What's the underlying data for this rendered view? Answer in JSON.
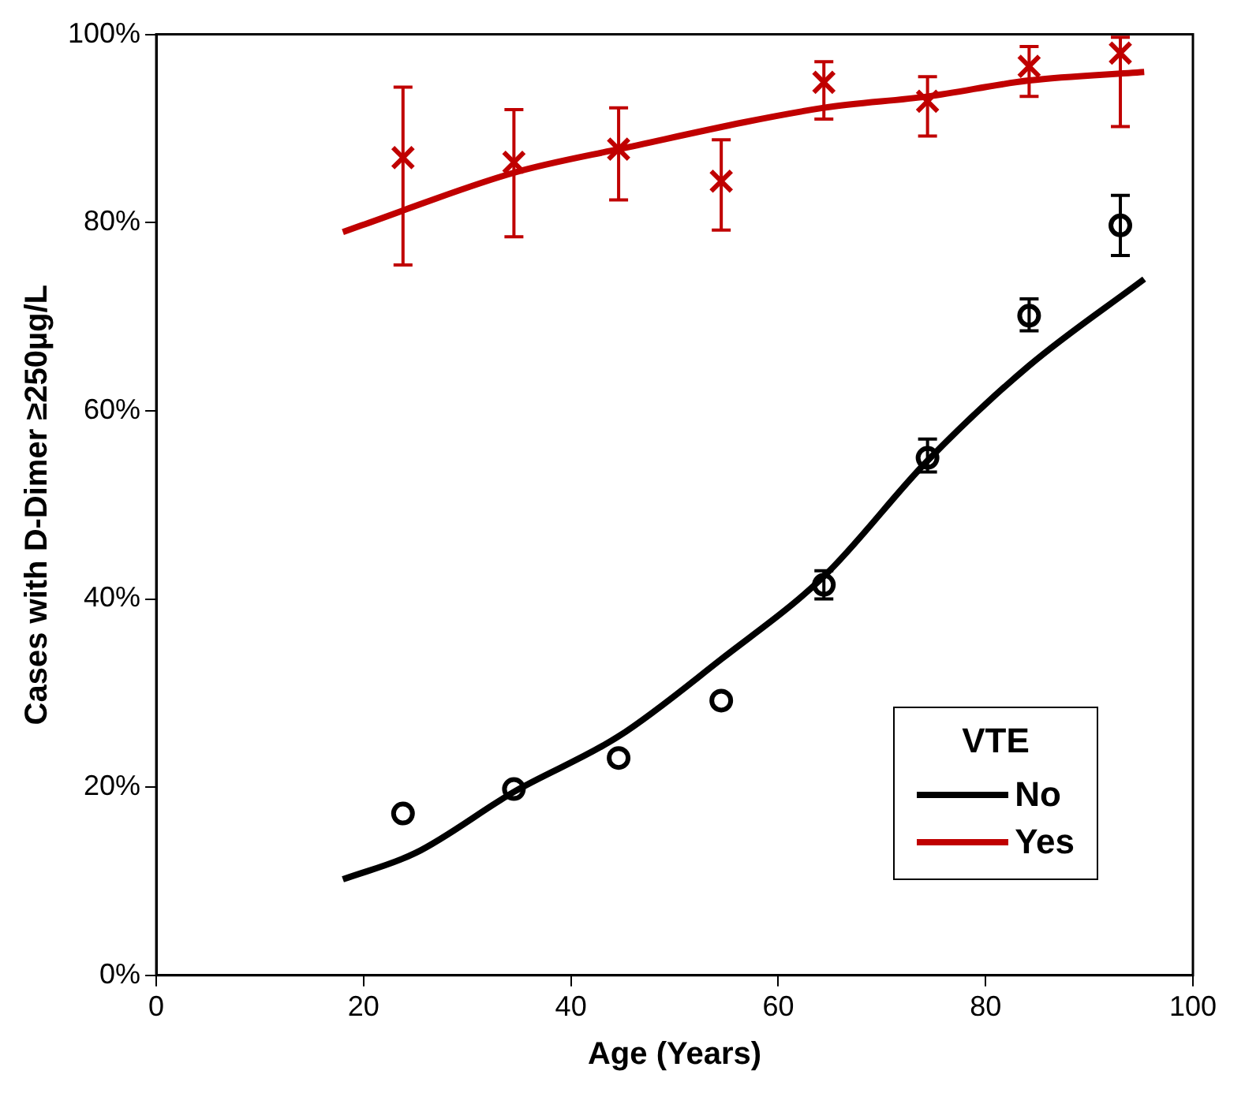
{
  "chart_data": {
    "type": "scatter",
    "xlabel": "Age (Years)",
    "ylabel": "Cases with D-Dimer ≥250µg/L",
    "legend_title": "VTE",
    "legend": "bottom right",
    "grid": false,
    "xlim": [
      0,
      100
    ],
    "xticks": [
      0,
      20,
      40,
      60,
      80,
      100
    ],
    "ylim": [
      0,
      100
    ],
    "yticks": [
      {
        "value": 0,
        "label": "0%"
      },
      {
        "value": 20,
        "label": "20%"
      },
      {
        "value": 40,
        "label": "40%"
      },
      {
        "value": 60,
        "label": "60%"
      },
      {
        "value": 80,
        "label": "80%"
      },
      {
        "value": 100,
        "label": "100%"
      }
    ],
    "series": [
      {
        "name": "No",
        "type": "line",
        "color": "#000000",
        "marker": "none",
        "line_style": "solid",
        "x": [
          18,
          25,
          34.5,
          44.6,
          54.5,
          64.4,
          74.4,
          84.2,
          95.3
        ],
        "values": [
          10.2,
          13,
          19.5,
          25.4,
          33.6,
          42.4,
          54.7,
          64.8,
          74
        ]
      },
      {
        "name": "Yes",
        "type": "line",
        "color": "#c00000",
        "marker": "none",
        "line_style": "solid",
        "x": [
          18,
          19.8,
          34.5,
          44.6,
          64.4,
          74.4,
          84.2,
          95.3
        ],
        "values": [
          79,
          79.7,
          85.3,
          87.8,
          92.2,
          93.4,
          95.1,
          96
        ]
      },
      {
        "color": "#000000",
        "marker": "circle",
        "x": [
          23.8,
          34.5,
          44.6,
          54.5,
          64.4,
          74.4,
          84.2,
          93
        ],
        "values": [
          17.2,
          19.8,
          23.1,
          29.2,
          41.5,
          55,
          70.1,
          79.7
        ],
        "errors": [
          null,
          null,
          null,
          null,
          [
            40,
            43
          ],
          [
            53.5,
            57
          ],
          [
            68.5,
            71.9
          ],
          [
            76.5,
            82.9
          ]
        ]
      },
      {
        "color": "#c00000",
        "marker": "cross",
        "x": [
          23.8,
          34.5,
          44.6,
          54.5,
          64.4,
          74.4,
          84.2,
          93
        ],
        "values": [
          86.9,
          86.4,
          87.8,
          84.4,
          94.9,
          92.9,
          96.6,
          98
        ],
        "errors": [
          [
            75.5,
            94.4
          ],
          [
            78.5,
            92
          ],
          [
            82.4,
            92.2
          ],
          [
            79.2,
            88.8
          ],
          [
            91,
            97.1
          ],
          [
            89.2,
            95.5
          ],
          [
            93.4,
            98.7
          ],
          [
            90.2,
            99.7
          ]
        ]
      }
    ]
  }
}
